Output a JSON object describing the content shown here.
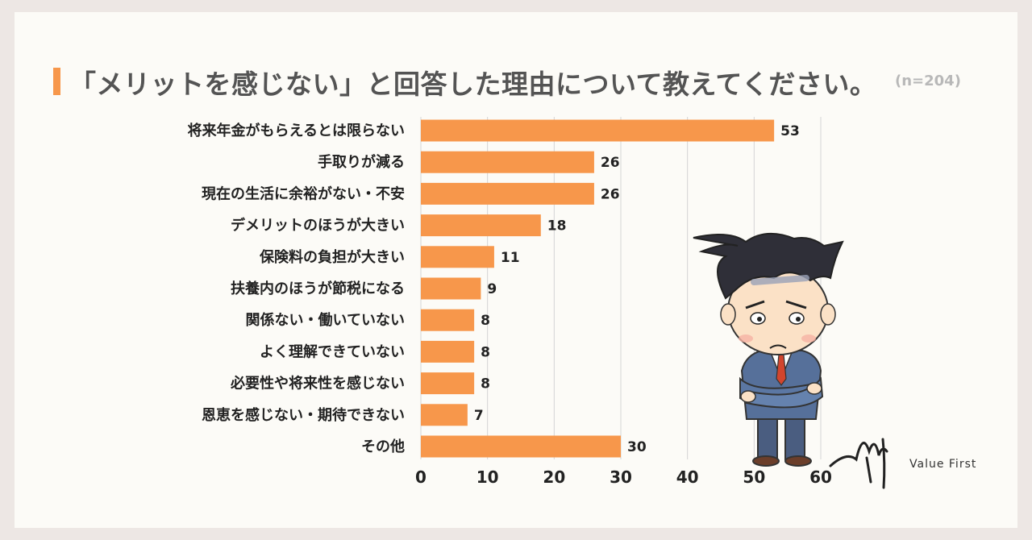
{
  "title": "「メリットを感じない」と回答した理由について教えてください。",
  "sample_size": "(n=204)",
  "logo_text": "Value First",
  "colors": {
    "bar": "#f7974b",
    "accent": "#f7974b",
    "grid": "#d4d4d4"
  },
  "chart_data": {
    "type": "bar",
    "orientation": "horizontal",
    "categories": [
      "将来年金がもらえるとは限らない",
      "手取りが減る",
      "現在の生活に余裕がない・不安",
      "デメリットのほうが大きい",
      "保険料の負担が大きい",
      "扶養内のほうが節税になる",
      "関係ない・働いていない",
      "よく理解できていない",
      "必要性や将来性を感じない",
      "恩恵を感じない・期待できない",
      "その他"
    ],
    "values": [
      53,
      26,
      26,
      18,
      11,
      9,
      8,
      8,
      8,
      7,
      30
    ],
    "xlim": [
      0,
      60
    ],
    "xticks": [
      0,
      10,
      20,
      30,
      40,
      50,
      60
    ],
    "grid": true,
    "data_labels": true
  }
}
